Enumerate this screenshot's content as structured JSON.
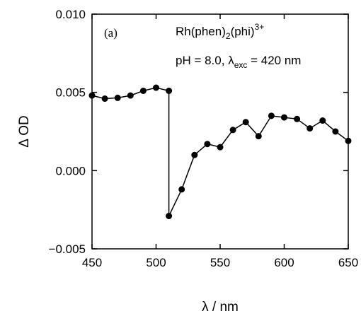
{
  "chart_data": {
    "type": "line",
    "panel_label": "(a)",
    "annotations": {
      "line1": {
        "base": "Rh(phen)",
        "sub1": "2",
        "mid": "(phi)",
        "sup1": "3+"
      },
      "line2": {
        "prefix": "pH = 8.0, ",
        "lambda": "λ",
        "sub": "exc",
        "suffix": " = 420 nm"
      }
    },
    "xlabel": "λ / nm",
    "ylabel": "Δ OD",
    "xlim": [
      450,
      650
    ],
    "ylim": [
      -0.005,
      0.01
    ],
    "xticks": [
      450,
      500,
      550,
      600,
      650
    ],
    "xtick_labels": [
      "450",
      "500",
      "550",
      "600",
      "650"
    ],
    "yticks": [
      -0.005,
      0.0,
      0.005,
      0.01
    ],
    "ytick_labels": [
      "−0.005",
      "0.000",
      "0.005",
      "0.010"
    ],
    "grid": false,
    "series": [
      {
        "x": [
          450,
          460,
          470,
          480,
          490,
          500,
          510,
          510,
          520,
          530,
          540,
          550,
          560,
          570,
          580,
          590,
          600,
          610,
          620,
          630,
          640,
          650
        ],
        "y": [
          0.0048,
          0.0046,
          0.00465,
          0.0048,
          0.0051,
          0.0053,
          0.0051,
          -0.0029,
          -0.0012,
          0.001,
          0.0017,
          0.0015,
          0.0026,
          0.0031,
          0.0022,
          0.0035,
          0.0034,
          0.0033,
          0.0027,
          0.0032,
          0.0025,
          0.0019
        ],
        "color": "#000000"
      }
    ]
  }
}
